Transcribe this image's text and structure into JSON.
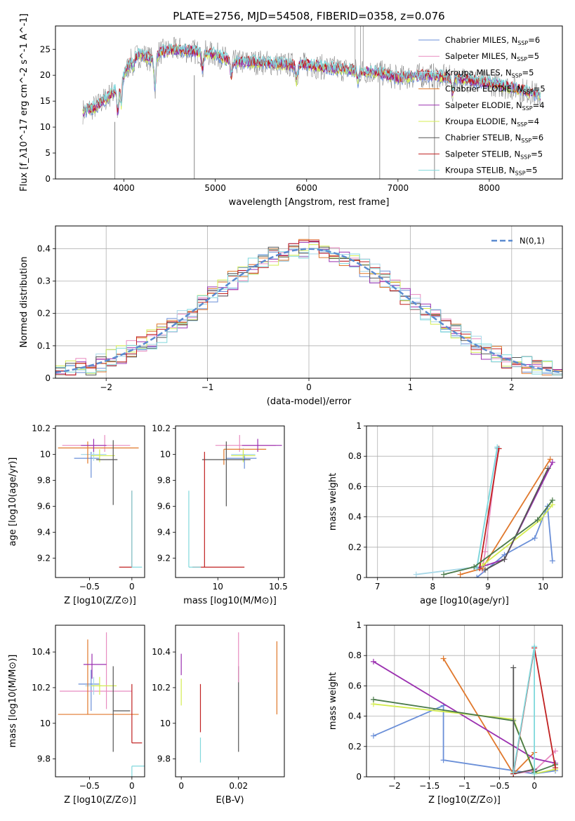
{
  "title": "PLATE=2756, MJD=54508, FIBERID=0358, z=0.076",
  "colors": {
    "ch_miles": "#6a8fd8",
    "sa_miles": "#e88cc0",
    "kr_miles": "#a8d8e8",
    "ch_elodie": "#e0782c",
    "sa_elodie": "#9b30b0",
    "kr_elodie": "#d4ec50",
    "ch_stelib": "#555555",
    "sa_stelib": "#c02020",
    "kr_stelib": "#80d8dc",
    "grid": "#b0b0b0",
    "spectrum_dark": "#777777"
  },
  "spectrum": {
    "xlabel": "wavelength [Angstrom, rest frame]",
    "ylabel": "Flux [f_λ10^-17 erg cm^-2 s^-1 A^-1]",
    "xlim": [
      3250,
      8800
    ],
    "ylim": [
      0,
      29.5
    ],
    "xticks": [
      4000,
      5000,
      6000,
      7000,
      8000
    ],
    "yticks": [
      0,
      5,
      10,
      15,
      20,
      25
    ],
    "legend": [
      {
        "key": "ch_miles",
        "label": "Chabrier MILES, N",
        "sub": "SSP",
        "tail": "=6"
      },
      {
        "key": "sa_miles",
        "label": "Salpeter MILES, N",
        "sub": "SSP",
        "tail": "=5"
      },
      {
        "key": "kr_miles",
        "label": "Kroupa MILES, N",
        "sub": "SSP",
        "tail": "=5"
      },
      {
        "key": "ch_elodie",
        "label": "Chabrier ELODIE, N",
        "sub": "SSP",
        "tail": "=5"
      },
      {
        "key": "sa_elodie",
        "label": "Salpeter ELODIE, N",
        "sub": "SSP",
        "tail": "=4"
      },
      {
        "key": "kr_elodie",
        "label": "Kroupa ELODIE, N",
        "sub": "SSP",
        "tail": "=4"
      },
      {
        "key": "ch_stelib",
        "label": "Chabrier STELIB, N",
        "sub": "SSP",
        "tail": "=6"
      },
      {
        "key": "sa_stelib",
        "label": "Salpeter STELIB, N",
        "sub": "SSP",
        "tail": "=5"
      },
      {
        "key": "kr_stelib",
        "label": "Kroupa STELIB, N",
        "sub": "SSP",
        "tail": "=5"
      }
    ],
    "continuum": [
      [
        3550,
        13
      ],
      [
        3700,
        14
      ],
      [
        3800,
        15.5
      ],
      [
        3900,
        17
      ],
      [
        3950,
        19
      ],
      [
        4000,
        20
      ],
      [
        4100,
        23.5
      ],
      [
        4200,
        24
      ],
      [
        4300,
        23
      ],
      [
        4400,
        24.5
      ],
      [
        4600,
        25
      ],
      [
        4800,
        24.5
      ],
      [
        5000,
        24
      ],
      [
        5200,
        22.5
      ],
      [
        5500,
        22.5
      ],
      [
        5800,
        22
      ],
      [
        6000,
        22
      ],
      [
        6200,
        21.5
      ],
      [
        6500,
        21
      ],
      [
        6800,
        20.5
      ],
      [
        7000,
        19.5
      ],
      [
        7300,
        20
      ],
      [
        7600,
        19.5
      ],
      [
        8000,
        18.5
      ],
      [
        8400,
        17
      ],
      [
        8560,
        16
      ]
    ]
  },
  "hist": {
    "xlabel": "(data-model)/error",
    "ylabel": "Normed distribution",
    "legend": "N(0,1)",
    "xlim": [
      -2.5,
      2.5
    ],
    "ylim": [
      0,
      0.47
    ],
    "xticks": [
      -2,
      -1,
      0,
      1,
      2
    ],
    "yticks": [
      0.0,
      0.1,
      0.2,
      0.3,
      0.4
    ]
  },
  "age_Z": {
    "xlabel": "Z [log10(Z/Z⊙)]",
    "ylabel": "age  [log10(age/yr)]",
    "xlim": [
      -0.9,
      0.15
    ],
    "ylim": [
      9.05,
      10.22
    ],
    "xticks": [
      -0.5,
      0.0
    ],
    "yticks": [
      9.2,
      9.4,
      9.6,
      9.8,
      10.0,
      10.2
    ],
    "points": [
      {
        "key": "ch_miles",
        "x": -0.48,
        "y": 9.97,
        "xe": [
          0.2,
          0.1
        ],
        "ye": [
          0.15,
          0.05
        ]
      },
      {
        "key": "sa_miles",
        "x": -0.32,
        "y": 10.07,
        "xe": [
          0.5,
          0.3
        ],
        "ye": [
          0.05,
          0.08
        ]
      },
      {
        "key": "kr_miles",
        "x": -0.45,
        "y": 10.0,
        "xe": [
          0.15,
          0.15
        ],
        "ye": [
          0.05,
          0.05
        ]
      },
      {
        "key": "ch_elodie",
        "x": -0.52,
        "y": 10.05,
        "xe": [
          0.35,
          0.6
        ],
        "ye": [
          0.12,
          0.05
        ]
      },
      {
        "key": "sa_elodie",
        "x": -0.45,
        "y": 10.07,
        "xe": [
          0.15,
          0.15
        ],
        "ye": [
          0.05,
          0.05
        ]
      },
      {
        "key": "kr_elodie",
        "x": -0.38,
        "y": 9.99,
        "xe": [
          0.1,
          0.18
        ],
        "ye": [
          0.05,
          0.05
        ]
      },
      {
        "key": "ch_stelib",
        "x": -0.22,
        "y": 9.96,
        "xe": [
          0.2,
          0.05
        ],
        "ye": [
          0.35,
          0.15
        ]
      },
      {
        "key": "sa_stelib",
        "x": 0.0,
        "y": 9.13,
        "xe": [
          0.15,
          0.0
        ],
        "ye": [
          0.0,
          0.59
        ]
      },
      {
        "key": "kr_stelib",
        "x": 0.0,
        "y": 9.13,
        "xe": [
          0.0,
          0.12
        ],
        "ye": [
          0.0,
          0.59
        ]
      }
    ]
  },
  "age_mass": {
    "xlabel": "mass [log10(M/M⊙)]",
    "xlim": [
      9.65,
      10.55
    ],
    "ylim": [
      9.05,
      10.22
    ],
    "xticks": [
      10.0,
      10.5
    ],
    "yticks": [
      9.2,
      9.4,
      9.6,
      9.8,
      10.0,
      10.2
    ],
    "points": [
      {
        "key": "ch_miles",
        "x": 10.22,
        "y": 9.97,
        "xe": [
          0.15,
          0.1
        ],
        "ye": [
          0.08,
          0.03
        ]
      },
      {
        "key": "sa_miles",
        "x": 10.18,
        "y": 10.07,
        "xe": [
          0.2,
          0.3
        ],
        "ye": [
          0.05,
          0.08
        ]
      },
      {
        "key": "kr_miles",
        "x": 10.21,
        "y": 10.0,
        "xe": [
          0.1,
          0.1
        ],
        "ye": [
          0.05,
          0.05
        ]
      },
      {
        "key": "ch_elodie",
        "x": 10.05,
        "y": 10.04,
        "xe": [
          0.0,
          0.35
        ],
        "ye": [
          0.12,
          0.0
        ]
      },
      {
        "key": "sa_elodie",
        "x": 10.33,
        "y": 10.07,
        "xe": [
          0.13,
          0.2
        ],
        "ye": [
          0.05,
          0.05
        ]
      },
      {
        "key": "kr_elodie",
        "x": 10.21,
        "y": 9.99,
        "xe": [
          0.1,
          0.1
        ],
        "ye": [
          0.05,
          0.05
        ]
      },
      {
        "key": "ch_stelib",
        "x": 10.07,
        "y": 9.96,
        "xe": [
          0.2,
          0.2
        ],
        "ye": [
          0.36,
          0.14
        ]
      },
      {
        "key": "sa_stelib",
        "x": 9.89,
        "y": 9.13,
        "xe": [
          0.1,
          0.33
        ],
        "ye": [
          0.0,
          0.89
        ]
      },
      {
        "key": "kr_stelib",
        "x": 9.76,
        "y": 9.13,
        "xe": [
          0.0,
          0.1
        ],
        "ye": [
          0.0,
          0.59
        ]
      }
    ]
  },
  "mw_age": {
    "xlabel": "age  [log10(age/yr)]",
    "ylabel": "mass weight",
    "xlim": [
      6.8,
      10.35
    ],
    "ylim": [
      0,
      1.0
    ],
    "xticks": [
      7,
      8,
      9,
      10
    ],
    "yticks": [
      0.0,
      0.2,
      0.4,
      0.6,
      0.8,
      1.0
    ],
    "series": [
      {
        "key": "ch_miles",
        "pts": [
          [
            8.8,
            0.0
          ],
          [
            9.3,
            0.15
          ],
          [
            9.85,
            0.26
          ],
          [
            10.08,
            0.47
          ],
          [
            10.17,
            0.11
          ]
        ]
      },
      {
        "key": "sa_miles",
        "pts": [
          [
            8.9,
            0.05
          ],
          [
            8.95,
            0.17
          ],
          [
            9.18,
            0.85
          ]
        ]
      },
      {
        "key": "kr_miles",
        "pts": [
          [
            7.7,
            0.02
          ],
          [
            8.8,
            0.07
          ],
          [
            9.17,
            0.85
          ]
        ]
      },
      {
        "key": "ch_elodie",
        "pts": [
          [
            8.5,
            0.02
          ],
          [
            8.9,
            0.06
          ],
          [
            10.13,
            0.78
          ]
        ]
      },
      {
        "key": "sa_elodie",
        "pts": [
          [
            8.8,
            0.06
          ],
          [
            9.3,
            0.12
          ],
          [
            10.17,
            0.76
          ]
        ]
      },
      {
        "key": "kr_elodie",
        "pts": [
          [
            8.9,
            0.08
          ],
          [
            9.95,
            0.38
          ],
          [
            10.17,
            0.48
          ]
        ]
      },
      {
        "key": "ch_stelib",
        "pts": [
          [
            8.95,
            0.05
          ],
          [
            9.3,
            0.12
          ],
          [
            10.09,
            0.72
          ]
        ]
      },
      {
        "key": "sa_stelib",
        "pts": [
          [
            8.85,
            0.06
          ],
          [
            9.2,
            0.85
          ]
        ]
      },
      {
        "key": "kr_stelib",
        "pts": [
          [
            8.8,
            0.06
          ],
          [
            9.17,
            0.86
          ]
        ]
      },
      {
        "key": "ch_stelib_green",
        "color": "#4a7a4a",
        "pts": [
          [
            8.2,
            0.02
          ],
          [
            8.75,
            0.07
          ],
          [
            9.9,
            0.38
          ],
          [
            10.17,
            0.51
          ]
        ]
      }
    ]
  },
  "mass_Z": {
    "xlabel": "Z [log10(Z/Z⊙)]",
    "ylabel": "mass [log10(M/M⊙)]",
    "xlim": [
      -0.9,
      0.15
    ],
    "ylim": [
      9.7,
      10.55
    ],
    "xticks": [
      -0.5,
      0.0
    ],
    "yticks": [
      9.8,
      10.0,
      10.2,
      10.4
    ],
    "points": [
      {
        "key": "ch_miles",
        "x": -0.48,
        "y": 10.22,
        "xe": [
          0.15,
          0.1
        ],
        "ye": [
          0.15,
          0.08
        ]
      },
      {
        "key": "sa_miles",
        "x": -0.3,
        "y": 10.18,
        "xe": [
          0.55,
          0.3
        ],
        "ye": [
          0.1,
          0.33
        ]
      },
      {
        "key": "kr_miles",
        "x": -0.45,
        "y": 10.21,
        "xe": [
          0.1,
          0.1
        ],
        "ye": [
          0.05,
          0.05
        ]
      },
      {
        "key": "ch_elodie",
        "x": -0.52,
        "y": 10.05,
        "xe": [
          0.35,
          0.6
        ],
        "ye": [
          0.0,
          0.42
        ]
      },
      {
        "key": "sa_elodie",
        "x": -0.47,
        "y": 10.33,
        "xe": [
          0.1,
          0.17
        ],
        "ye": [
          0.08,
          0.06
        ]
      },
      {
        "key": "kr_elodie",
        "x": -0.38,
        "y": 10.21,
        "xe": [
          0.1,
          0.2
        ],
        "ye": [
          0.05,
          0.05
        ]
      },
      {
        "key": "ch_stelib",
        "x": -0.22,
        "y": 10.07,
        "xe": [
          0.0,
          0.2
        ],
        "ye": [
          0.23,
          0.25
        ]
      },
      {
        "key": "sa_stelib",
        "x": -0.0,
        "y": 9.89,
        "xe": [
          0.0,
          0.12
        ],
        "ye": [
          0.0,
          0.33
        ]
      },
      {
        "key": "kr_stelib",
        "x": 0.0,
        "y": 9.76,
        "xe": [
          0.0,
          0.15
        ],
        "ye": [
          0.1,
          0.0
        ]
      }
    ]
  },
  "mass_ebv": {
    "xlabel": "E(B-V)",
    "xlim": [
      -0.002,
      0.036
    ],
    "ylim": [
      9.7,
      10.55
    ],
    "xticks": [
      0.0,
      0.02
    ],
    "yticks": [
      9.8,
      10.0,
      10.2,
      10.4
    ],
    "points": [
      {
        "key": "sa_elodie",
        "x": 0.0,
        "y": 10.33,
        "ye": [
          0.06,
          0.06
        ]
      },
      {
        "key": "kr_elodie",
        "x": 0.0,
        "y": 10.2,
        "ye": [
          0.1,
          0.05
        ]
      },
      {
        "key": "sa_stelib",
        "x": 0.0067,
        "y": 10.05,
        "ye": [
          0.1,
          0.17
        ]
      },
      {
        "key": "kr_stelib",
        "x": 0.0067,
        "y": 9.83,
        "ye": [
          0.05,
          0.09
        ]
      },
      {
        "key": "ch_stelib",
        "x": 0.02,
        "y": 10.07,
        "ye": [
          0.23,
          0.25
        ]
      },
      {
        "key": "sa_miles",
        "x": 0.02,
        "y": 10.33,
        "ye": [
          0.1,
          0.18
        ]
      },
      {
        "key": "ch_elodie",
        "x": 0.0334,
        "y": 10.25,
        "ye": [
          0.2,
          0.21
        ]
      }
    ]
  },
  "mw_Z": {
    "xlabel": "Z [log10(Z/Z⊙)]",
    "ylabel": "mass weight",
    "xlim": [
      -2.4,
      0.4
    ],
    "ylim": [
      0,
      1.0
    ],
    "xticks": [
      -2.0,
      -1.5,
      -1.0,
      -0.5,
      0.0
    ],
    "yticks": [
      0.0,
      0.2,
      0.4,
      0.6,
      0.8,
      1.0
    ],
    "series": [
      {
        "key": "ch_miles",
        "pts": [
          [
            -2.3,
            0.27
          ],
          [
            -1.3,
            0.47
          ],
          [
            -1.3,
            0.11
          ],
          [
            0.0,
            0.02
          ],
          [
            0.3,
            0.04
          ]
        ]
      },
      {
        "key": "sa_miles",
        "pts": [
          [
            -0.3,
            0.02
          ],
          [
            0.0,
            0.04
          ],
          [
            0.3,
            0.17
          ]
        ]
      },
      {
        "key": "ch_elodie",
        "pts": [
          [
            -1.3,
            0.78
          ],
          [
            -0.3,
            0.02
          ],
          [
            0.0,
            0.16
          ]
        ]
      },
      {
        "key": "sa_elodie",
        "pts": [
          [
            -2.3,
            0.76
          ],
          [
            0.0,
            0.12
          ],
          [
            0.3,
            0.09
          ]
        ]
      },
      {
        "key": "kr_elodie",
        "pts": [
          [
            -2.3,
            0.48
          ],
          [
            -0.3,
            0.38
          ],
          [
            0.0,
            0.02
          ],
          [
            0.3,
            0.05
          ]
        ]
      },
      {
        "key": "ch_stelib_green",
        "color": "#4a7a4a",
        "pts": [
          [
            -2.3,
            0.51
          ],
          [
            -0.3,
            0.37
          ],
          [
            0.0,
            0.03
          ],
          [
            0.3,
            0.08
          ]
        ]
      },
      {
        "key": "ch_stelib",
        "pts": [
          [
            -0.3,
            0.72
          ],
          [
            -0.3,
            0.02
          ],
          [
            0.0,
            0.05
          ]
        ]
      },
      {
        "key": "sa_stelib",
        "pts": [
          [
            -0.3,
            0.02
          ],
          [
            0.0,
            0.85
          ],
          [
            0.3,
            0.06
          ]
        ]
      },
      {
        "key": "kr_stelib",
        "pts": [
          [
            -0.3,
            0.03
          ],
          [
            0.0,
            0.86
          ],
          [
            0.0,
            0.02
          ]
        ]
      }
    ]
  }
}
